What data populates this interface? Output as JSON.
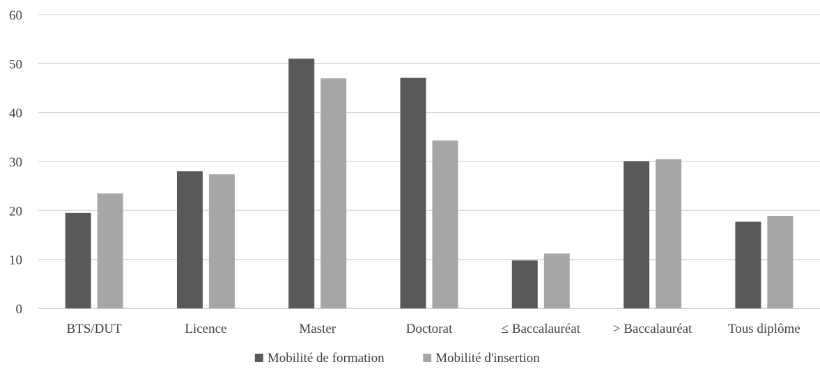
{
  "chart_data": {
    "type": "bar",
    "categories": [
      "BTS/DUT",
      "Licence",
      "Master",
      "Doctorat",
      "≤ Baccalauréat",
      "> Baccalauréat",
      "Tous diplôme"
    ],
    "series": [
      {
        "name": "Mobilité de formation",
        "color": "#595959",
        "values": [
          19.5,
          28.0,
          51.0,
          47.1,
          9.8,
          30.1,
          17.7
        ]
      },
      {
        "name": "Mobilité d'insertion",
        "color": "#a6a6a6",
        "values": [
          23.5,
          27.4,
          47.0,
          34.3,
          11.2,
          30.5,
          18.9
        ]
      }
    ],
    "yticks": [
      "0",
      "10",
      "20",
      "30",
      "40",
      "50",
      "60"
    ],
    "ylim": [
      0,
      60
    ],
    "grid": true,
    "legend_position": "bottom-center",
    "title": "",
    "xlabel": "",
    "ylabel": ""
  }
}
